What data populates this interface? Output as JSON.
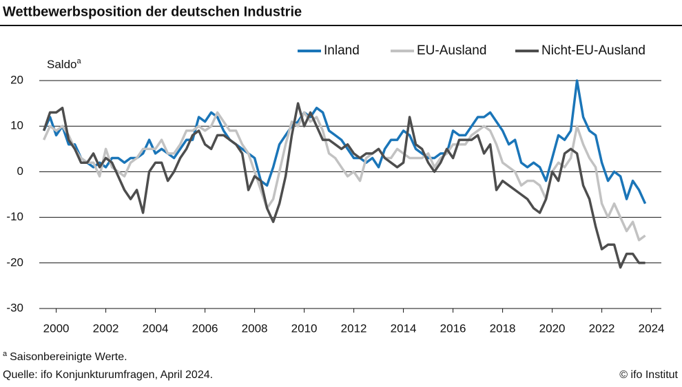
{
  "chart_data": {
    "type": "line",
    "title": "Wettbewerbsposition der deutschen Industrie",
    "y_label": "Saldo",
    "y_label_note": "a",
    "footnote_marker": "a",
    "footnote": "Saisonbereinigte Werte.",
    "source": "Quelle: ifo Konjunkturumfragen, April 2024.",
    "credit": "© ifo Institut",
    "grid": true,
    "legend": "top-right",
    "xlim": [
      1999.9,
      2024.9
    ],
    "ylim": [
      -30,
      20
    ],
    "yticks": [
      20,
      10,
      0,
      -10,
      -20,
      -30
    ],
    "xticks": [
      {
        "value": 2000.5,
        "label": "2000"
      },
      {
        "value": 2002.5,
        "label": "2002"
      },
      {
        "value": 2004.5,
        "label": "2004"
      },
      {
        "value": 2006.5,
        "label": "2006"
      },
      {
        "value": 2008.5,
        "label": "2008"
      },
      {
        "value": 2010.5,
        "label": "2010"
      },
      {
        "value": 2012.5,
        "label": "2012"
      },
      {
        "value": 2014.5,
        "label": "2014"
      },
      {
        "value": 2016.5,
        "label": "2016"
      },
      {
        "value": 2018.5,
        "label": "2018"
      },
      {
        "value": 2020.5,
        "label": "2020"
      },
      {
        "value": 2022.5,
        "label": "2022"
      },
      {
        "value": 2024.5,
        "label": "2024"
      }
    ],
    "x": [
      2000,
      2000.25,
      2000.5,
      2000.75,
      2001,
      2001.25,
      2001.5,
      2001.75,
      2002,
      2002.25,
      2002.5,
      2002.75,
      2003,
      2003.25,
      2003.5,
      2003.75,
      2004,
      2004.25,
      2004.5,
      2004.75,
      2005,
      2005.25,
      2005.5,
      2005.75,
      2006,
      2006.25,
      2006.5,
      2006.75,
      2007,
      2007.25,
      2007.5,
      2007.75,
      2008,
      2008.25,
      2008.5,
      2008.75,
      2009,
      2009.25,
      2009.5,
      2009.75,
      2010,
      2010.25,
      2010.5,
      2010.75,
      2011,
      2011.25,
      2011.5,
      2011.75,
      2012,
      2012.25,
      2012.5,
      2012.75,
      2013,
      2013.25,
      2013.5,
      2013.75,
      2014,
      2014.25,
      2014.5,
      2014.75,
      2015,
      2015.25,
      2015.5,
      2015.75,
      2016,
      2016.25,
      2016.5,
      2016.75,
      2017,
      2017.25,
      2017.5,
      2017.75,
      2018,
      2018.25,
      2018.5,
      2018.75,
      2019,
      2019.25,
      2019.5,
      2019.75,
      2020,
      2020.25,
      2020.5,
      2020.75,
      2021,
      2021.25,
      2021.5,
      2021.75,
      2022,
      2022.25,
      2022.5,
      2022.75,
      2023,
      2023.25,
      2023.5,
      2023.75,
      2024,
      2024.25
    ],
    "series": [
      {
        "name": "Inland",
        "color": "#1a75b8",
        "values": [
          9,
          12,
          8,
          10,
          6,
          6,
          3,
          2,
          1,
          2,
          1,
          3,
          3,
          2,
          3,
          3,
          4,
          7,
          4,
          5,
          4,
          3,
          5,
          7,
          7,
          12,
          11,
          13,
          12,
          9,
          7,
          6,
          5,
          4,
          3,
          -2,
          -3,
          1,
          6,
          8,
          10,
          11,
          13,
          12,
          14,
          13,
          9,
          8,
          7,
          5,
          3,
          3,
          2,
          3,
          1,
          5,
          7,
          7,
          9,
          8,
          5,
          4,
          3,
          3,
          4,
          4,
          9,
          8,
          8,
          10,
          12,
          12,
          13,
          11,
          9,
          6,
          7,
          2,
          1,
          2,
          1,
          -2,
          3,
          8,
          7,
          9,
          20,
          12,
          9,
          8,
          2,
          -2,
          0,
          -1,
          -6,
          -2,
          -4,
          -7
        ]
      },
      {
        "name": "EU-Ausland",
        "color": "#c2c2c2",
        "values": [
          7,
          10,
          9,
          10,
          8,
          5,
          3,
          2,
          2,
          -1,
          5,
          1,
          0,
          -1,
          2,
          3,
          5,
          5,
          5,
          7,
          4,
          4,
          6,
          9,
          9,
          10,
          9,
          10,
          13,
          11,
          9,
          9,
          6,
          4,
          0,
          -4,
          -8,
          -6,
          0,
          6,
          11,
          10,
          13,
          11,
          12,
          9,
          4,
          3,
          1,
          -1,
          0,
          -2,
          3,
          4,
          5,
          3,
          3,
          5,
          4,
          3,
          3,
          3,
          4,
          1,
          3,
          4,
          6,
          6,
          6,
          8,
          9,
          10,
          9,
          6,
          2,
          1,
          0,
          -3,
          -2,
          -2,
          -3,
          -6,
          0,
          2,
          1,
          3,
          10,
          6,
          3,
          1,
          -7,
          -10,
          -7,
          -10,
          -13,
          -11,
          -15,
          -14
        ]
      },
      {
        "name": "Nicht-EU-Ausland",
        "color": "#4d4d4d",
        "values": [
          9,
          13,
          13,
          14,
          7,
          5,
          2,
          2,
          4,
          1,
          3,
          2,
          -1,
          -4,
          -6,
          -4,
          -9,
          0,
          2,
          2,
          -2,
          0,
          3,
          5,
          8,
          9,
          6,
          5,
          8,
          8,
          7,
          6,
          4,
          -4,
          -1,
          -2,
          -8,
          -11,
          -7,
          -1,
          8,
          15,
          10,
          13,
          10,
          7,
          7,
          6,
          5,
          6,
          4,
          3,
          4,
          4,
          5,
          3,
          2,
          1,
          2,
          12,
          6,
          5,
          2,
          0,
          2,
          5,
          3,
          7,
          7,
          7,
          8,
          4,
          6,
          -4,
          -2,
          -3,
          -4,
          -5,
          -6,
          -8,
          -9,
          -6,
          0,
          -2,
          4,
          5,
          4,
          -3,
          -6,
          -12,
          -17,
          -16,
          -16,
          -21,
          -18,
          -18,
          -20,
          -20
        ]
      }
    ]
  }
}
